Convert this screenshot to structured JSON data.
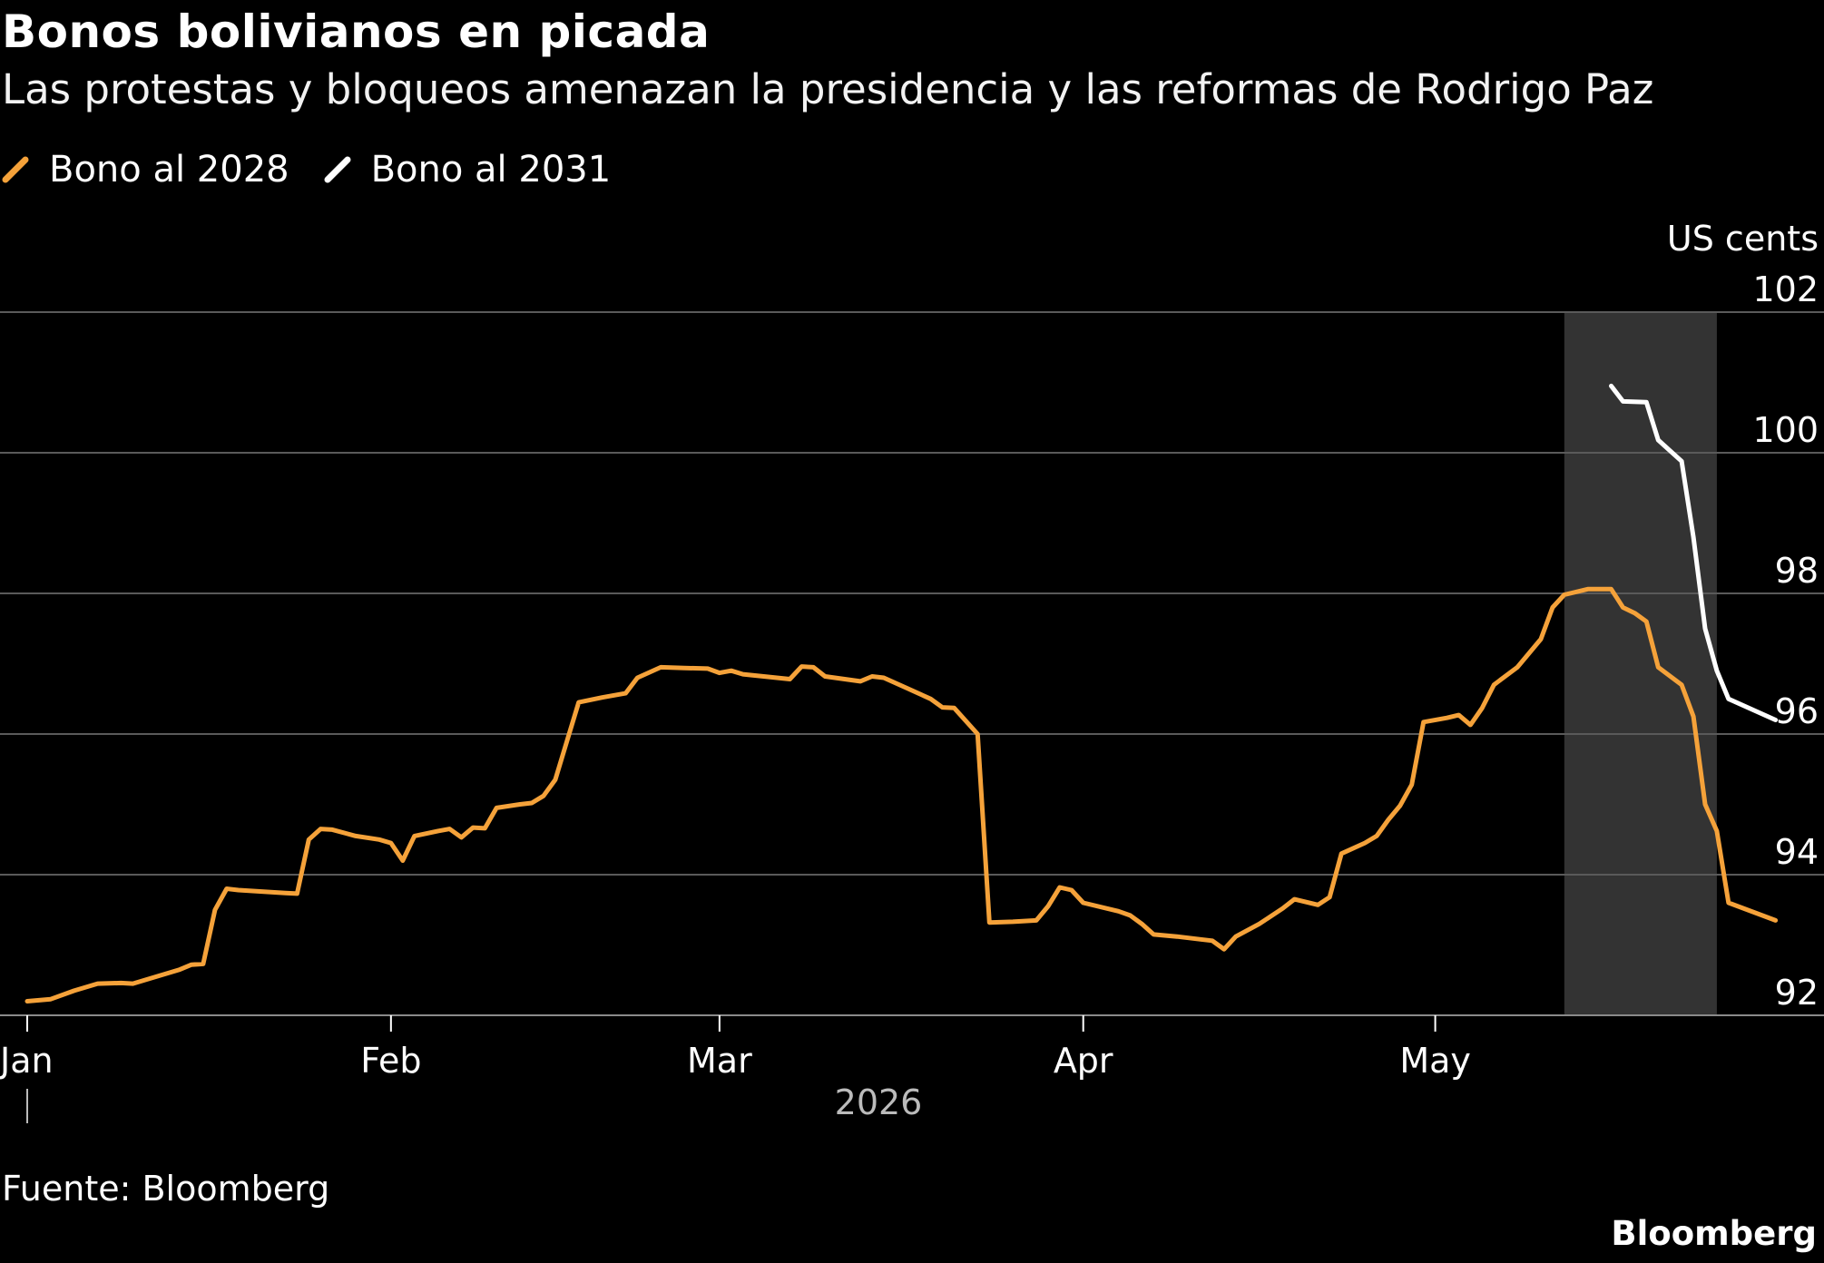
{
  "title": "Bonos bolivianos en picada",
  "subtitle": "Las protestas y bloqueos amenazan la presidencia y las reformas de Rodrigo Paz",
  "source": "Fuente: Bloomberg",
  "brand": "Bloomberg",
  "colors": {
    "background": "#000000",
    "bono2028": "#f5a23a",
    "bono2031": "#ffffff",
    "shade": "#333333",
    "grid": "#5a5a5a"
  },
  "chart_data": {
    "type": "line",
    "ylabel": "US cents",
    "ylim": [
      92,
      102
    ],
    "yticks": [
      92,
      94,
      96,
      98,
      100,
      102
    ],
    "xlim": [
      "2026-01-01",
      "2026-05-25"
    ],
    "xticks": [
      {
        "date": "2026-01-01",
        "label": "Jan"
      },
      {
        "date": "2026-02-01",
        "label": "Feb"
      },
      {
        "date": "2026-03-01",
        "label": "Mar"
      },
      {
        "date": "2026-04-01",
        "label": "Apr"
      },
      {
        "date": "2026-05-01",
        "label": "May"
      }
    ],
    "year_label": "2026",
    "shaded_range": [
      "2026-05-12",
      "2026-05-25"
    ],
    "grid": true,
    "legend_position": "top-left",
    "series": [
      {
        "name": "Bono al 2028",
        "color": "#f5a23a",
        "points": [
          [
            "2026-01-01",
            92.2
          ],
          [
            "2026-01-03",
            92.23
          ],
          [
            "2026-01-05",
            92.35
          ],
          [
            "2026-01-07",
            92.45
          ],
          [
            "2026-01-09",
            92.46
          ],
          [
            "2026-01-10",
            92.45
          ],
          [
            "2026-01-12",
            92.55
          ],
          [
            "2026-01-14",
            92.65
          ],
          [
            "2026-01-15",
            92.72
          ],
          [
            "2026-01-16",
            92.73
          ],
          [
            "2026-01-17",
            93.5
          ],
          [
            "2026-01-18",
            93.8
          ],
          [
            "2026-01-19",
            93.78
          ],
          [
            "2026-01-21",
            93.76
          ],
          [
            "2026-01-23",
            93.74
          ],
          [
            "2026-01-24",
            93.73
          ],
          [
            "2026-01-25",
            94.5
          ],
          [
            "2026-01-26",
            94.65
          ],
          [
            "2026-01-27",
            94.64
          ],
          [
            "2026-01-29",
            94.55
          ],
          [
            "2026-01-31",
            94.5
          ],
          [
            "2026-02-01",
            94.45
          ],
          [
            "2026-02-02",
            94.2
          ],
          [
            "2026-02-03",
            94.55
          ],
          [
            "2026-02-05",
            94.62
          ],
          [
            "2026-02-06",
            94.65
          ],
          [
            "2026-02-07",
            94.53
          ],
          [
            "2026-02-08",
            94.67
          ],
          [
            "2026-02-09",
            94.66
          ],
          [
            "2026-02-10",
            94.95
          ],
          [
            "2026-02-12",
            95.0
          ],
          [
            "2026-02-13",
            95.02
          ],
          [
            "2026-02-14",
            95.12
          ],
          [
            "2026-02-15",
            95.35
          ],
          [
            "2026-02-16",
            95.9
          ],
          [
            "2026-02-17",
            96.45
          ],
          [
            "2026-02-19",
            96.52
          ],
          [
            "2026-02-21",
            96.58
          ],
          [
            "2026-02-22",
            96.8
          ],
          [
            "2026-02-24",
            96.95
          ],
          [
            "2026-02-26",
            96.94
          ],
          [
            "2026-02-28",
            96.93
          ],
          [
            "2026-03-01",
            96.87
          ],
          [
            "2026-03-02",
            96.9
          ],
          [
            "2026-03-03",
            96.85
          ],
          [
            "2026-03-07",
            96.78
          ],
          [
            "2026-03-08",
            96.96
          ],
          [
            "2026-03-09",
            96.95
          ],
          [
            "2026-03-10",
            96.82
          ],
          [
            "2026-03-13",
            96.75
          ],
          [
            "2026-03-14",
            96.82
          ],
          [
            "2026-03-15",
            96.8
          ],
          [
            "2026-03-17",
            96.65
          ],
          [
            "2026-03-19",
            96.5
          ],
          [
            "2026-03-20",
            96.38
          ],
          [
            "2026-03-21",
            96.37
          ],
          [
            "2026-03-23",
            96.0
          ],
          [
            "2026-03-24",
            93.32
          ],
          [
            "2026-03-26",
            93.33
          ],
          [
            "2026-03-28",
            93.35
          ],
          [
            "2026-03-29",
            93.55
          ],
          [
            "2026-03-30",
            93.82
          ],
          [
            "2026-03-31",
            93.78
          ],
          [
            "2026-04-01",
            93.6
          ],
          [
            "2026-04-04",
            93.48
          ],
          [
            "2026-04-05",
            93.42
          ],
          [
            "2026-04-06",
            93.3
          ],
          [
            "2026-04-07",
            93.15
          ],
          [
            "2026-04-09",
            93.12
          ],
          [
            "2026-04-11",
            93.08
          ],
          [
            "2026-04-12",
            93.06
          ],
          [
            "2026-04-13",
            92.94
          ],
          [
            "2026-04-14",
            93.12
          ],
          [
            "2026-04-16",
            93.3
          ],
          [
            "2026-04-18",
            93.52
          ],
          [
            "2026-04-19",
            93.65
          ],
          [
            "2026-04-21",
            93.57
          ],
          [
            "2026-04-22",
            93.68
          ],
          [
            "2026-04-23",
            94.3
          ],
          [
            "2026-04-25",
            94.45
          ],
          [
            "2026-04-26",
            94.55
          ],
          [
            "2026-04-27",
            94.78
          ],
          [
            "2026-04-28",
            94.98
          ],
          [
            "2026-04-29",
            95.28
          ],
          [
            "2026-04-30",
            96.17
          ],
          [
            "2026-05-02",
            96.23
          ],
          [
            "2026-05-03",
            96.27
          ],
          [
            "2026-05-04",
            96.13
          ],
          [
            "2026-05-05",
            96.37
          ],
          [
            "2026-05-06",
            96.7
          ],
          [
            "2026-05-08",
            96.95
          ],
          [
            "2026-05-10",
            97.35
          ],
          [
            "2026-05-11",
            97.8
          ],
          [
            "2026-05-12",
            97.98
          ],
          [
            "2026-05-14",
            98.06
          ],
          [
            "2026-05-16",
            98.06
          ],
          [
            "2026-05-17",
            97.8
          ],
          [
            "2026-05-18",
            97.72
          ],
          [
            "2026-05-19",
            97.6
          ],
          [
            "2026-05-20",
            96.95
          ],
          [
            "2026-05-22",
            96.7
          ],
          [
            "2026-05-23",
            96.25
          ],
          [
            "2026-05-24",
            95.0
          ],
          [
            "2026-05-25",
            94.62
          ],
          [
            "2026-05-26",
            93.6
          ],
          [
            "2026-05-30",
            93.35
          ]
        ]
      },
      {
        "name": "Bono al 2031",
        "color": "#ffffff",
        "points": [
          [
            "2026-05-16",
            100.95
          ],
          [
            "2026-05-17",
            100.73
          ],
          [
            "2026-05-19",
            100.72
          ],
          [
            "2026-05-20",
            100.18
          ],
          [
            "2026-05-22",
            99.88
          ],
          [
            "2026-05-23",
            98.8
          ],
          [
            "2026-05-24",
            97.5
          ],
          [
            "2026-05-25",
            96.9
          ],
          [
            "2026-05-26",
            96.5
          ],
          [
            "2026-05-30",
            96.2
          ]
        ]
      }
    ]
  }
}
